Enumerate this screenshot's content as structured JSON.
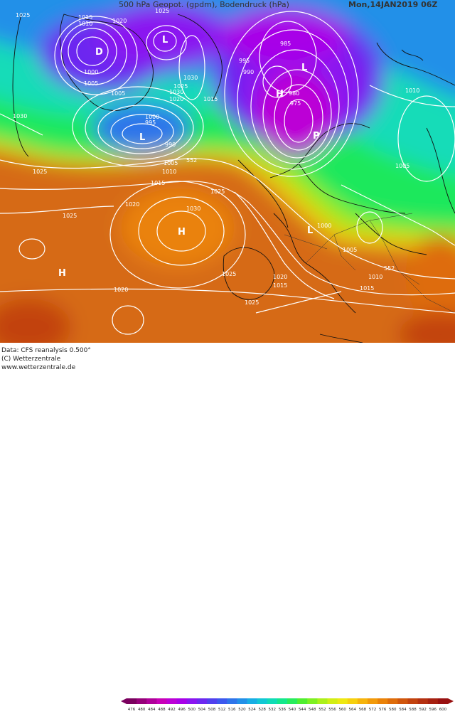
{
  "header": {
    "title": "500 hPa Geopot. (gpdm), Bodendruck (hPa)",
    "valid_time": "Mon,14JAN2019 06Z"
  },
  "footer": {
    "data_source": "Data: CFS reanalysis 0.500°",
    "copyright": "(C) Wetterzentrale",
    "url": "www.wetterzentrale.de"
  },
  "legend": {
    "values": [
      "476",
      "480",
      "484",
      "488",
      "492",
      "496",
      "500",
      "504",
      "508",
      "512",
      "516",
      "520",
      "524",
      "528",
      "532",
      "536",
      "540",
      "544",
      "548",
      "552",
      "556",
      "560",
      "564",
      "568",
      "572",
      "576",
      "580",
      "584",
      "588",
      "592",
      "596",
      "600"
    ],
    "colors": [
      "#7a005e",
      "#96007a",
      "#b0009a",
      "#c800b8",
      "#bc00d6",
      "#a800e8",
      "#8a14f0",
      "#6c28f0",
      "#5040ee",
      "#3c58ee",
      "#2e74ea",
      "#2290e8",
      "#18aee4",
      "#12c8d4",
      "#10dcb6",
      "#14e88c",
      "#28ec5c",
      "#50ee30",
      "#7ef022",
      "#acf01a",
      "#d2ee14",
      "#eee812",
      "#f6d00e",
      "#f6b40c",
      "#f29a0a",
      "#ea8208",
      "#de6c0a",
      "#d0560c",
      "#c2420e",
      "#b43010",
      "#a62010",
      "#981010"
    ]
  },
  "map": {
    "pressure_labels": [
      "1025",
      "1015",
      "1010",
      "1020",
      "1025",
      "1000",
      "1005",
      "1005",
      "1030",
      "1000",
      "995",
      "990",
      "1005",
      "1010",
      "1015",
      "552",
      "1025",
      "1030",
      "1025",
      "1030",
      "1020",
      "1025",
      "1020",
      "1015",
      "1025",
      "1020",
      "1025",
      "1030",
      "1015",
      "1020",
      "995",
      "990",
      "985",
      "980",
      "975",
      "1010",
      "1005",
      "1000",
      "1005",
      "552",
      "1010",
      "1015",
      "1025"
    ],
    "pressure_centers": [
      "D",
      "L",
      "L",
      "H",
      "L",
      "P",
      "L",
      "H",
      "H"
    ]
  }
}
